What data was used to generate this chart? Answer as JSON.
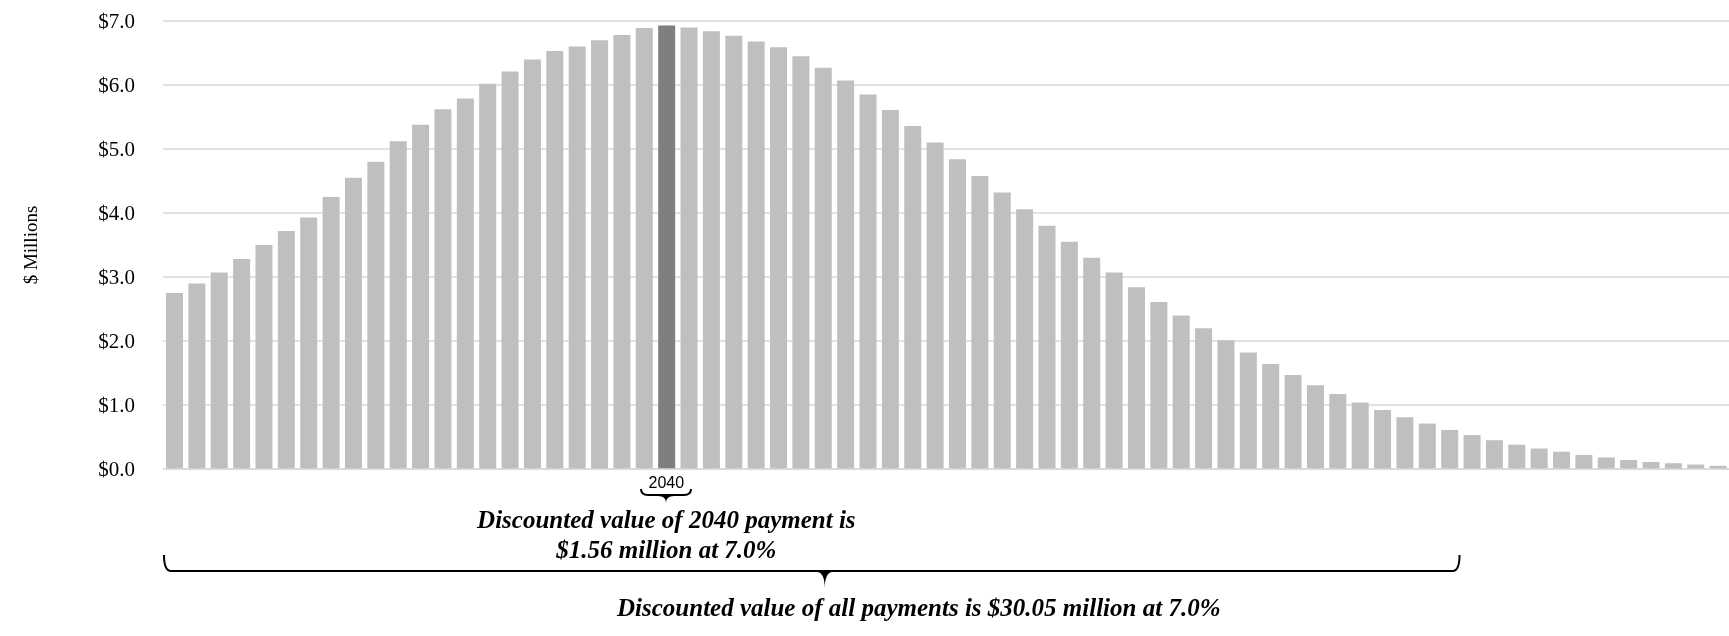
{
  "chart_data": {
    "type": "bar",
    "ylabel": "$ Millions",
    "categories": [
      null,
      null,
      null,
      null,
      null,
      null,
      null,
      null,
      null,
      null,
      null,
      null,
      null,
      null,
      null,
      null,
      null,
      null,
      null,
      null,
      null,
      null,
      "2040",
      null,
      null,
      null,
      null,
      null,
      null,
      null,
      null,
      null,
      null,
      null,
      null,
      null,
      null,
      null,
      null,
      null,
      null,
      null,
      null,
      null,
      null,
      null,
      null,
      null,
      null,
      null,
      null,
      null,
      null,
      null,
      null,
      null,
      null,
      null,
      null,
      null,
      null,
      null,
      null,
      null,
      null,
      null,
      null,
      null,
      null,
      null
    ],
    "values": [
      2.75,
      2.9,
      3.07,
      3.28,
      3.5,
      3.72,
      3.93,
      4.25,
      4.55,
      4.8,
      5.12,
      5.38,
      5.62,
      5.79,
      6.02,
      6.21,
      6.4,
      6.53,
      6.6,
      6.7,
      6.78,
      6.89,
      6.93,
      6.9,
      6.84,
      6.77,
      6.68,
      6.59,
      6.45,
      6.27,
      6.07,
      5.85,
      5.61,
      5.36,
      5.1,
      4.84,
      4.58,
      4.32,
      4.06,
      3.8,
      3.55,
      3.3,
      3.07,
      2.84,
      2.61,
      2.4,
      2.2,
      2.01,
      1.82,
      1.64,
      1.47,
      1.31,
      1.17,
      1.04,
      0.92,
      0.81,
      0.71,
      0.61,
      0.53,
      0.45,
      0.38,
      0.32,
      0.27,
      0.22,
      0.18,
      0.14,
      0.11,
      0.09,
      0.07,
      0.05
    ],
    "colors": [
      "#bfbfbf",
      "#bfbfbf",
      "#bfbfbf",
      "#bfbfbf",
      "#bfbfbf",
      "#bfbfbf",
      "#bfbfbf",
      "#bfbfbf",
      "#bfbfbf",
      "#bfbfbf",
      "#bfbfbf",
      "#bfbfbf",
      "#bfbfbf",
      "#bfbfbf",
      "#bfbfbf",
      "#bfbfbf",
      "#bfbfbf",
      "#bfbfbf",
      "#bfbfbf",
      "#bfbfbf",
      "#bfbfbf",
      "#bfbfbf",
      "#7f7f7f",
      "#bfbfbf",
      "#bfbfbf",
      "#bfbfbf",
      "#bfbfbf",
      "#bfbfbf",
      "#bfbfbf",
      "#bfbfbf",
      "#bfbfbf",
      "#bfbfbf",
      "#bfbfbf",
      "#bfbfbf",
      "#bfbfbf",
      "#bfbfbf",
      "#bfbfbf",
      "#bfbfbf",
      "#bfbfbf",
      "#bfbfbf",
      "#bfbfbf",
      "#bfbfbf",
      "#bfbfbf",
      "#bfbfbf",
      "#bfbfbf",
      "#bfbfbf",
      "#bfbfbf",
      "#bfbfbf",
      "#bfbfbf",
      "#bfbfbf",
      "#bfbfbf",
      "#bfbfbf",
      "#bfbfbf",
      "#bfbfbf",
      "#bfbfbf",
      "#bfbfbf",
      "#bfbfbf",
      "#bfbfbf",
      "#bfbfbf",
      "#bfbfbf",
      "#bfbfbf",
      "#bfbfbf",
      "#bfbfbf",
      "#bfbfbf",
      "#bfbfbf",
      "#bfbfbf",
      "#bfbfbf",
      "#bfbfbf",
      "#bfbfbf",
      "#bfbfbf"
    ],
    "ylim": [
      0,
      7
    ],
    "yticks": [
      {
        "value": 0,
        "label": "$0.0"
      },
      {
        "value": 1,
        "label": "$1.0"
      },
      {
        "value": 2,
        "label": "$2.0"
      },
      {
        "value": 3,
        "label": "$3.0"
      },
      {
        "value": 4,
        "label": "$4.0"
      },
      {
        "value": 5,
        "label": "$5.0"
      },
      {
        "value": 6,
        "label": "$6.0"
      },
      {
        "value": 7,
        "label": "$7.0"
      }
    ],
    "grid": "y",
    "annotations": [
      "Discounted value of 2040 payment is $1.56 million at 7.0%",
      "Discounted value of all payments is $30.05 million at 7.0%"
    ]
  }
}
